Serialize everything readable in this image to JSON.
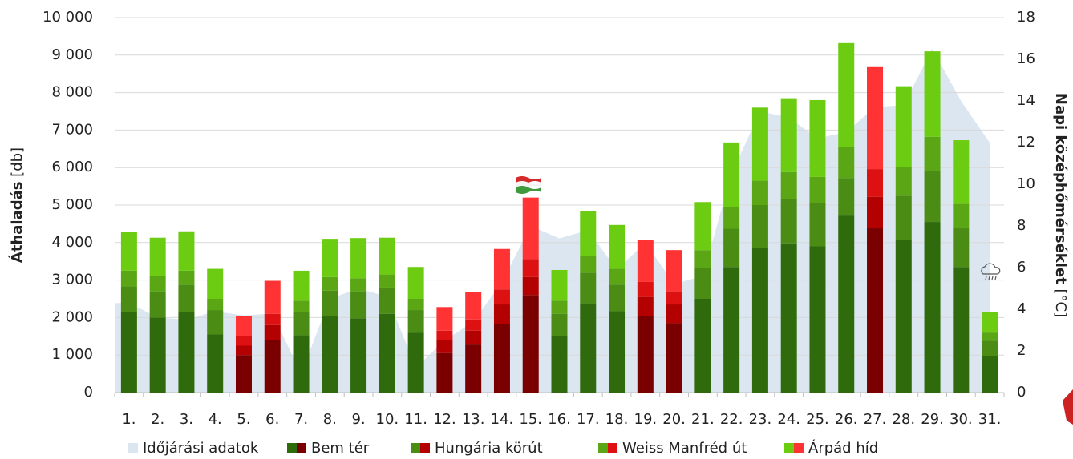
{
  "chart_data": {
    "type": "bar",
    "stacked": true,
    "categories": [
      "1.",
      "2.",
      "3.",
      "4.",
      "5.",
      "6.",
      "7.",
      "8.",
      "9.",
      "10.",
      "11.",
      "12.",
      "13.",
      "14.",
      "15.",
      "16.",
      "17.",
      "18.",
      "19.",
      "20.",
      "21.",
      "22.",
      "23.",
      "24.",
      "25.",
      "26.",
      "27.",
      "28.",
      "29.",
      "30.",
      "31."
    ],
    "highlight": [
      "5.",
      "6.",
      "12.",
      "13.",
      "14.",
      "15.",
      "19.",
      "20.",
      "27."
    ],
    "ylabel": "Áthaladás",
    "ylabel_unit": "[db]",
    "y2label": "Napi középhőmérséklet",
    "y2label_unit": "[°C]",
    "ylim": [
      0,
      10000
    ],
    "yticks": [
      0,
      {
        "value": 1000,
        "label": "1 000"
      },
      {
        "value": 2000,
        "label": "2 000"
      },
      {
        "value": 3000,
        "label": "3 000"
      },
      {
        "value": 4000,
        "label": "4 000"
      },
      {
        "value": 5000,
        "label": "5 000"
      },
      {
        "value": 6000,
        "label": "6 000"
      },
      {
        "value": 7000,
        "label": "7 000"
      },
      {
        "value": 8000,
        "label": "8 000"
      },
      {
        "value": 9000,
        "label": "9 000"
      },
      {
        "value": 10000,
        "label": "10 000"
      }
    ],
    "y2lim": [
      0,
      18
    ],
    "y2ticks": [
      0,
      2,
      4,
      6,
      8,
      10,
      12,
      14,
      16,
      18
    ],
    "grid": true,
    "series": [
      {
        "name": "Időjárási adatok",
        "type": "area",
        "axis": "y2",
        "color": "#dbe6f0",
        "values": [
          4.3,
          3.6,
          3.5,
          3.9,
          3.7,
          3.8,
          0.9,
          4.5,
          5.0,
          4.6,
          1.2,
          2.5,
          3.4,
          5.3,
          8.0,
          7.4,
          7.8,
          5.9,
          7.2,
          5.2,
          5.6,
          10.5,
          13.5,
          13.2,
          12.2,
          12.5,
          13.7,
          13.8,
          16.5,
          14.0,
          12.0
        ]
      },
      {
        "name": "Bem tér",
        "color": "#2f6a0c",
        "alt_color": "#7a0000",
        "values": [
          2150,
          2000,
          2150,
          1550,
          1000,
          1400,
          1530,
          2050,
          1980,
          2100,
          1600,
          1050,
          1280,
          1830,
          2600,
          1500,
          2380,
          2170,
          2050,
          1850,
          2500,
          3350,
          3850,
          3980,
          3900,
          4720,
          4380,
          4080,
          4550,
          3350,
          980
        ]
      },
      {
        "name": "Hungária körút",
        "color": "#4a8c14",
        "alt_color": "#b30000",
        "values": [
          680,
          700,
          730,
          650,
          250,
          400,
          620,
          670,
          720,
          700,
          600,
          350,
          370,
          520,
          480,
          600,
          820,
          710,
          500,
          500,
          820,
          1020,
          1150,
          1170,
          1150,
          1000,
          840,
          1170,
          1350,
          1030,
          400
        ]
      },
      {
        "name": "Weiss Manfréd út",
        "color": "#5aa614",
        "alt_color": "#dd1111",
        "values": [
          420,
          400,
          370,
          300,
          250,
          300,
          300,
          360,
          350,
          350,
          300,
          250,
          300,
          400,
          480,
          350,
          450,
          420,
          400,
          350,
          480,
          580,
          650,
          730,
          700,
          840,
          740,
          770,
          920,
          650,
          220
        ]
      },
      {
        "name": "Árpád híd",
        "color": "#6ccc12",
        "alt_color": "#ff3333",
        "values": [
          1030,
          1030,
          1050,
          800,
          550,
          880,
          800,
          1020,
          1070,
          980,
          850,
          630,
          730,
          1080,
          1640,
          820,
          1200,
          1170,
          1130,
          1100,
          1280,
          1720,
          1950,
          1970,
          2050,
          2760,
          2720,
          2150,
          2280,
          1700,
          550
        ]
      }
    ]
  }
}
